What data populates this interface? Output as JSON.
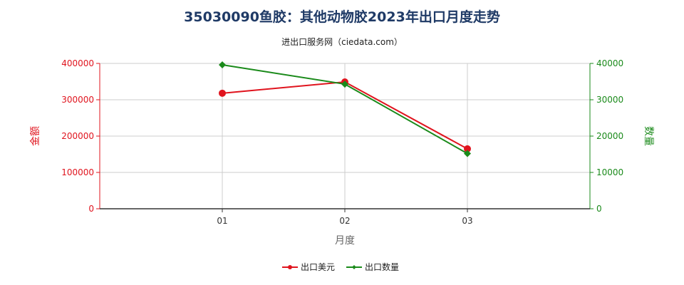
{
  "title": "35030090鱼胶：其他动物胶2023年出口月度走势",
  "subtitle": "进出口服务网（ciedata.com）",
  "colors": {
    "left_axis": "#e0141e",
    "right_axis": "#1a8a1a",
    "grid": "#cccccc",
    "title": "#1f3a66"
  },
  "chart_data": {
    "type": "line",
    "categories": [
      "01",
      "02",
      "03"
    ],
    "xlabel": "月度",
    "ylabel_left": "金额",
    "ylabel_right": "数量",
    "ylim_left": [
      0,
      400000
    ],
    "ylim_right": [
      0,
      40000
    ],
    "yticks_left": [
      "0",
      "100000",
      "200000",
      "300000",
      "400000"
    ],
    "yticks_right": [
      "0",
      "10000",
      "20000",
      "30000",
      "40000"
    ],
    "grid": true,
    "legend_position": "bottom",
    "series": [
      {
        "name": "出口美元",
        "axis": "left",
        "color": "#e0141e",
        "marker": "circle",
        "values": [
          318000,
          349000,
          165000
        ]
      },
      {
        "name": "出口数量",
        "axis": "right",
        "color": "#1a8a1a",
        "marker": "diamond",
        "values": [
          39600,
          34300,
          15200
        ]
      }
    ]
  }
}
